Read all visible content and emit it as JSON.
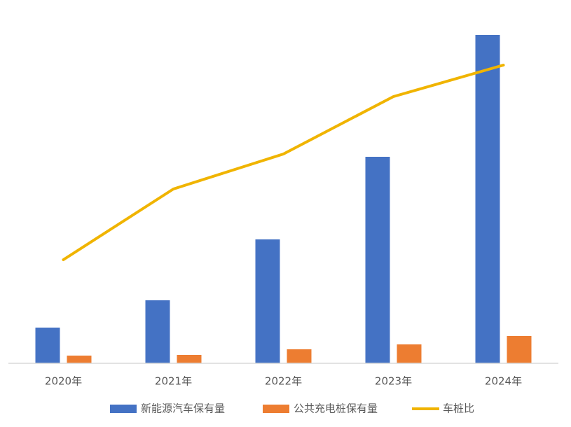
{
  "chart_data": {
    "type": "bar",
    "categories": [
      "2020年",
      "2021年",
      "2022年",
      "2023年",
      "2024年"
    ],
    "series": [
      {
        "name": "新能源汽车保有量",
        "color": "#4472c4",
        "type": "bar",
        "values": [
          51,
          90,
          177,
          295,
          469
        ]
      },
      {
        "name": "公共充电桩保有量",
        "color": "#ed7d31",
        "type": "bar",
        "values": [
          11,
          12,
          20,
          27,
          39
        ]
      },
      {
        "name": "车桩比",
        "color": "#f0b400",
        "type": "line",
        "axis": "y2",
        "values": [
          148,
          249,
          299,
          381,
          426
        ]
      }
    ],
    "ylim": [
      0,
      480
    ],
    "y2lim": [
      0,
      480
    ],
    "grid": false,
    "legend": "bottom"
  }
}
